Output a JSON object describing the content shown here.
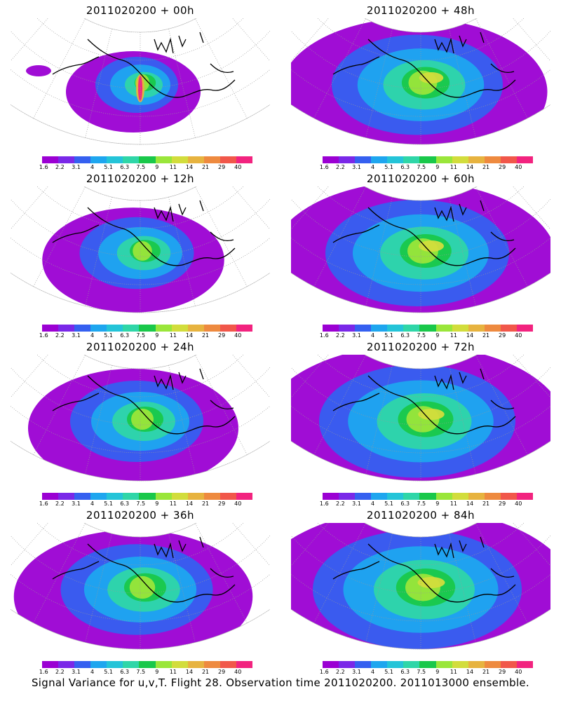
{
  "colorbar": {
    "colors": [
      "#9b00d3",
      "#7a28e8",
      "#3560f0",
      "#1ea6ef",
      "#24c4d8",
      "#2fd6a8",
      "#19c84a",
      "#9ae63a",
      "#d2dd3c",
      "#e7b33f",
      "#ee8a3f",
      "#f1574a",
      "#f2237f"
    ],
    "labels": [
      "1.6",
      "2.2",
      "3.1",
      "4",
      "5.1",
      "6.3",
      "7.5",
      "9",
      "11",
      "14",
      "21",
      "29",
      "40"
    ]
  },
  "panels": [
    {
      "title": "2011020200 + 00h",
      "intensity": 0.0
    },
    {
      "title": "2011020200 + 48h",
      "intensity": 0.7
    },
    {
      "title": "2011020200 + 12h",
      "intensity": 0.25
    },
    {
      "title": "2011020200 + 60h",
      "intensity": 0.8
    },
    {
      "title": "2011020200 + 24h",
      "intensity": 0.4
    },
    {
      "title": "2011020200 + 72h",
      "intensity": 0.9
    },
    {
      "title": "2011020200 + 36h",
      "intensity": 0.55
    },
    {
      "title": "2011020200 + 84h",
      "intensity": 1.0
    }
  ],
  "footer": "Signal Variance for u,v,T. Flight 28. Observation time 2011020200. 2011013000 ensemble."
}
